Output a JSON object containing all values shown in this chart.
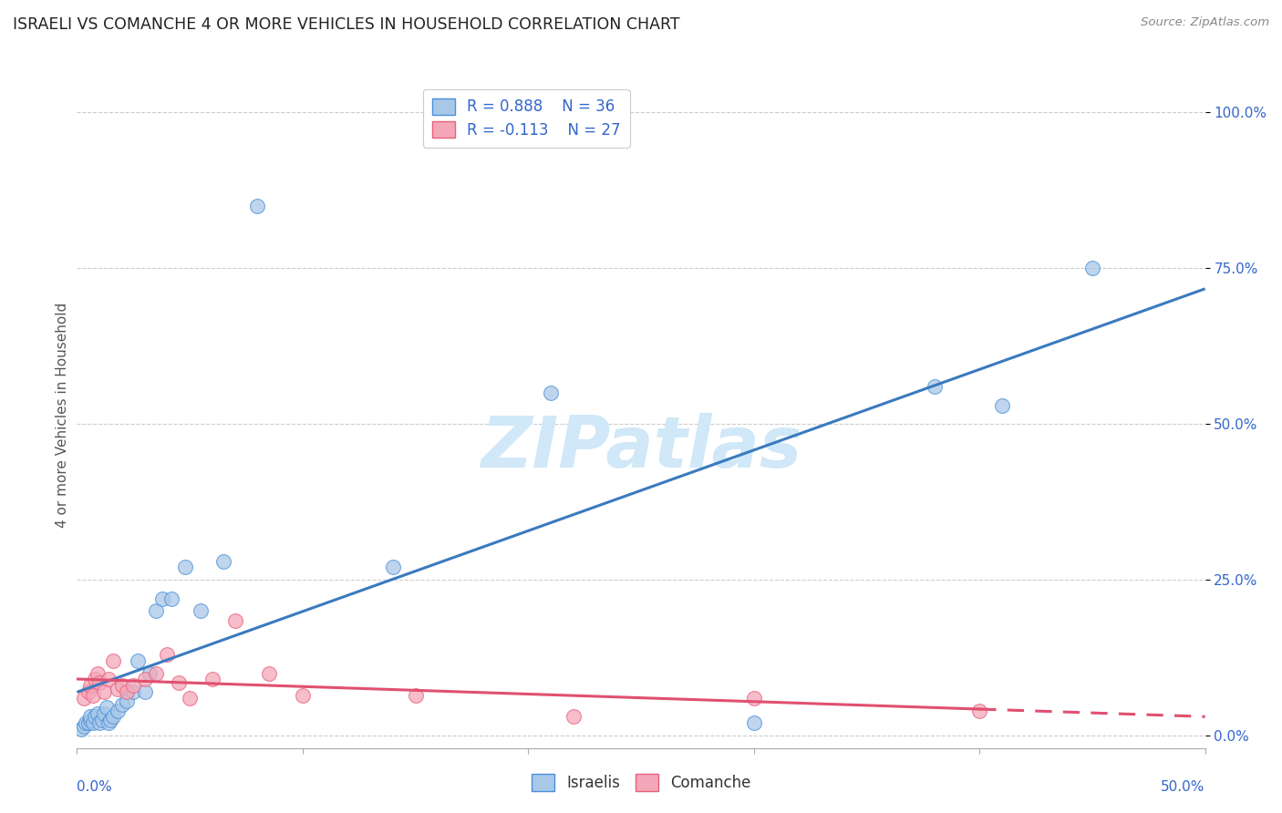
{
  "title": "ISRAELI VS COMANCHE 4 OR MORE VEHICLES IN HOUSEHOLD CORRELATION CHART",
  "source": "Source: ZipAtlas.com",
  "ylabel": "4 or more Vehicles in Household",
  "ytick_vals": [
    0.0,
    0.25,
    0.5,
    0.75,
    1.0
  ],
  "ytick_labels": [
    "0.0%",
    "25.0%",
    "50.0%",
    "75.0%",
    "100.0%"
  ],
  "xlim": [
    0.0,
    0.5
  ],
  "ylim": [
    -0.02,
    1.05
  ],
  "israelis_R": 0.888,
  "israelis_N": 36,
  "comanche_R": -0.113,
  "comanche_N": 27,
  "israeli_color": "#a8c8e8",
  "comanche_color": "#f4a7b9",
  "israeli_edge_color": "#4a90d9",
  "comanche_edge_color": "#e8607a",
  "israeli_line_color": "#3a7abf",
  "comanche_line_color": "#e05070",
  "legend_text_color": "#3366cc",
  "watermark_color": "#d0e8f8",
  "israelis_x": [
    0.002,
    0.003,
    0.004,
    0.005,
    0.006,
    0.006,
    0.007,
    0.008,
    0.009,
    0.01,
    0.011,
    0.012,
    0.013,
    0.014,
    0.015,
    0.016,
    0.018,
    0.02,
    0.022,
    0.025,
    0.027,
    0.03,
    0.032,
    0.035,
    0.038,
    0.042,
    0.048,
    0.055,
    0.065,
    0.08,
    0.14,
    0.21,
    0.3,
    0.38,
    0.41,
    0.45
  ],
  "israelis_y": [
    0.01,
    0.015,
    0.02,
    0.02,
    0.025,
    0.03,
    0.02,
    0.03,
    0.035,
    0.02,
    0.025,
    0.035,
    0.045,
    0.02,
    0.025,
    0.03,
    0.04,
    0.05,
    0.055,
    0.07,
    0.12,
    0.07,
    0.1,
    0.2,
    0.22,
    0.22,
    0.27,
    0.2,
    0.28,
    0.85,
    0.27,
    0.55,
    0.02,
    0.56,
    0.53,
    0.75
  ],
  "comanche_x": [
    0.003,
    0.005,
    0.006,
    0.007,
    0.008,
    0.009,
    0.01,
    0.012,
    0.014,
    0.016,
    0.018,
    0.02,
    0.022,
    0.025,
    0.03,
    0.035,
    0.04,
    0.045,
    0.05,
    0.06,
    0.07,
    0.085,
    0.1,
    0.15,
    0.22,
    0.3,
    0.4
  ],
  "comanche_y": [
    0.06,
    0.07,
    0.08,
    0.065,
    0.09,
    0.1,
    0.085,
    0.07,
    0.09,
    0.12,
    0.075,
    0.08,
    0.07,
    0.08,
    0.09,
    0.1,
    0.13,
    0.085,
    0.06,
    0.09,
    0.185,
    0.1,
    0.065,
    0.065,
    0.03,
    0.06,
    0.04
  ]
}
